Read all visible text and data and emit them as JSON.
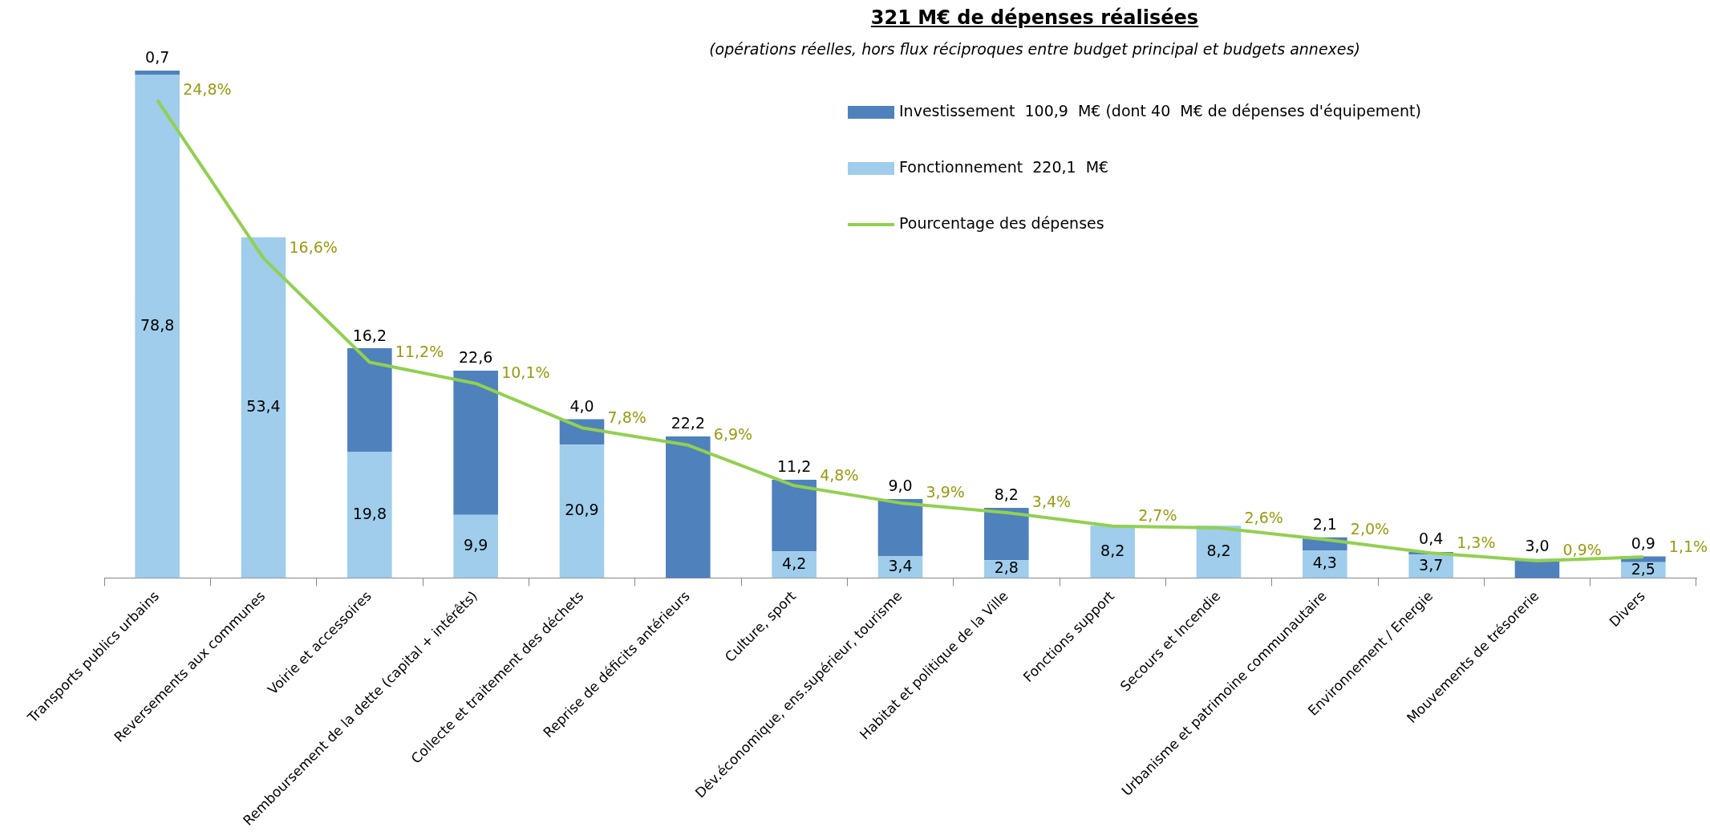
{
  "chart_data": {
    "type": "bar",
    "title": "321 M€ de dépenses réalisées",
    "subtitle": "(opérations réelles, hors flux réciproques entre budget principal et budgets annexes)",
    "categories": [
      "Transports publics urbains",
      "Reversements aux communes",
      "Voirie et accessoires",
      "Remboursement de la dette (capital + intérêts)",
      "Collecte et traitement des déchets",
      "Reprise de déficits antérieurs",
      "Culture, sport",
      "Dév.économique, ens.supérieur, tourisme",
      "Habitat et politique de la Ville",
      "Fonctions support",
      "Secours et Incendie",
      "Urbanisme et patrimoine communautaire",
      "Environnement / Energie",
      "Mouvements de trésorerie",
      "Divers"
    ],
    "stacked": true,
    "series": [
      {
        "name": "Fonctionnement  220,1  M€",
        "color": "#9fcdeb",
        "values": [
          78.8,
          53.4,
          19.8,
          9.9,
          20.9,
          null,
          4.2,
          3.4,
          2.8,
          8.2,
          8.2,
          4.3,
          3.7,
          null,
          2.5
        ],
        "value_labels": [
          "78,8",
          "53,4",
          "19,8",
          "9,9",
          "20,9",
          null,
          "4,2",
          "3,4",
          "2,8",
          "8,2",
          "8,2",
          "4,3",
          "3,7",
          null,
          "2,5"
        ]
      },
      {
        "name": "Investissement  100,9  M€ (dont 40  M€ de dépenses d'équipement)",
        "color": "#4f81bd",
        "values": [
          0.7,
          null,
          16.2,
          22.6,
          4.0,
          22.2,
          11.2,
          9.0,
          8.2,
          null,
          null,
          2.1,
          0.4,
          3.0,
          0.9
        ],
        "value_labels": [
          "0,7",
          null,
          "16,2",
          "22,6",
          "4,0",
          "22,2",
          "11,2",
          "9,0",
          "8,2",
          null,
          null,
          "2,1",
          "0,4",
          "3,0",
          "0,9"
        ]
      },
      {
        "name": "Pourcentage des dépenses",
        "type": "line",
        "axis": "y2",
        "color": "#92d050",
        "values": [
          24.8,
          16.6,
          11.2,
          10.1,
          7.8,
          6.9,
          4.8,
          3.9,
          3.4,
          2.7,
          2.6,
          2.0,
          1.3,
          0.9,
          1.1
        ],
        "value_labels": [
          "24,8%",
          "16,6%",
          "11,2%",
          "10,1%",
          "7,8%",
          "6,9%",
          "4,8%",
          "3,9%",
          "3,4%",
          "2,7%",
          "2,6%",
          "2,0%",
          "1,3%",
          "0,9%",
          "1,1%"
        ]
      }
    ],
    "ylim": [
      0,
      80
    ],
    "y2lim": [
      0,
      26.5
    ],
    "tick_labels": "x",
    "grid": false,
    "legend": "top right",
    "marker": "none"
  }
}
